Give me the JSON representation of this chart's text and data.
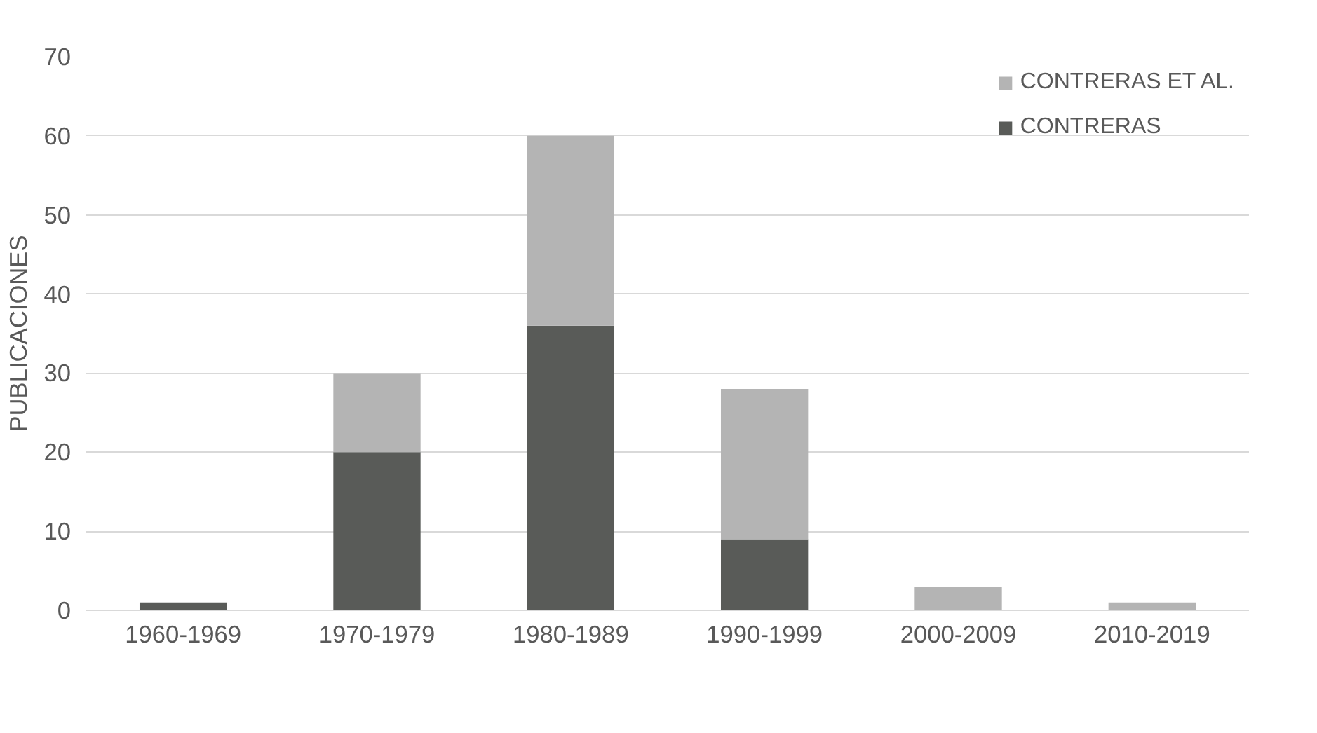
{
  "chart_data": {
    "type": "bar",
    "stacked": true,
    "ylabel": "PUBLICACIONES",
    "categories": [
      "1960-1969",
      "1970-1979",
      "1980-1989",
      "1990-1999",
      "2000-2009",
      "2010-2019"
    ],
    "series": [
      {
        "name": "CONTRERAS",
        "color": "#595b58",
        "values": [
          1,
          20,
          36,
          9,
          0,
          0
        ]
      },
      {
        "name": "CONTRERAS ET AL.",
        "color": "#b4b4b4",
        "values": [
          0,
          10,
          24,
          19,
          3,
          1
        ]
      }
    ],
    "ylim": [
      0,
      70
    ],
    "yticks": [
      0,
      10,
      20,
      30,
      40,
      50,
      60,
      70
    ],
    "grid": "y",
    "legend": "top right"
  }
}
